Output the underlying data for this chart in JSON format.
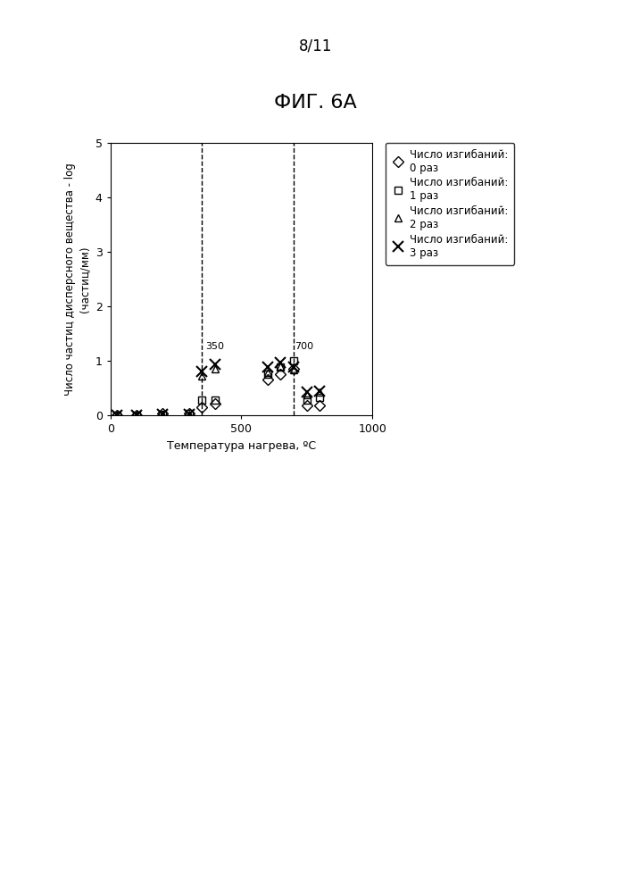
{
  "title_page": "8/11",
  "title_fig": "ФИГ. 6А",
  "xlabel": "Температура нагрева, ºC",
  "ylabel_line1": "Число частиц дисперсного вещества - log",
  "ylabel_line2": "(частиц/мм)",
  "vline1": 350,
  "vline2": 700,
  "vline1_label": "350",
  "vline2_label": "700",
  "xlim": [
    0,
    1000
  ],
  "ylim": [
    0,
    5
  ],
  "yticks": [
    0,
    1,
    2,
    3,
    4,
    5
  ],
  "xticks": [
    0,
    500,
    1000
  ],
  "background_color": "#ffffff",
  "series": [
    {
      "label_line1": "Число изгибаний:",
      "label_line2": "0 раз",
      "marker": "D",
      "color": "black",
      "facecolor": "none",
      "markersize": 6,
      "x": [
        25,
        100,
        200,
        300,
        350,
        400,
        600,
        650,
        700,
        750,
        800
      ],
      "y": [
        0.0,
        0.0,
        0.03,
        0.03,
        0.15,
        0.22,
        0.65,
        0.75,
        0.85,
        0.18,
        0.18
      ]
    },
    {
      "label_line1": "Число изгибаний:",
      "label_line2": "1 раз",
      "marker": "s",
      "color": "black",
      "facecolor": "none",
      "markersize": 6,
      "x": [
        25,
        100,
        200,
        300,
        350,
        400,
        600,
        650,
        700,
        750,
        800
      ],
      "y": [
        0.0,
        0.0,
        0.02,
        0.03,
        0.28,
        0.28,
        0.75,
        0.88,
        1.0,
        0.28,
        0.32
      ]
    },
    {
      "label_line1": "Число изгибаний:",
      "label_line2": "2 раз",
      "marker": "^",
      "color": "black",
      "facecolor": "none",
      "markersize": 6,
      "x": [
        25,
        100,
        200,
        300,
        350,
        400,
        600,
        650,
        700,
        750,
        800
      ],
      "y": [
        0.0,
        0.0,
        0.02,
        0.02,
        0.72,
        0.85,
        0.78,
        0.9,
        0.83,
        0.38,
        0.42
      ]
    },
    {
      "label_line1": "Число изгибаний:",
      "label_line2": "3 раз",
      "marker": "x",
      "color": "black",
      "facecolor": "black",
      "markersize": 8,
      "markeredgewidth": 1.5,
      "x": [
        25,
        100,
        200,
        300,
        350,
        400,
        600,
        650,
        700,
        750,
        800
      ],
      "y": [
        0.0,
        0.0,
        0.01,
        0.02,
        0.8,
        0.93,
        0.88,
        0.97,
        0.88,
        0.42,
        0.45
      ]
    }
  ],
  "legend_entries": [
    "Число изгибаний:\n0 раз",
    "Число изгибаний:\n1 раз",
    "Число изгибаний:\n2 раз",
    "Число изгибаний:\n3 раз"
  ]
}
